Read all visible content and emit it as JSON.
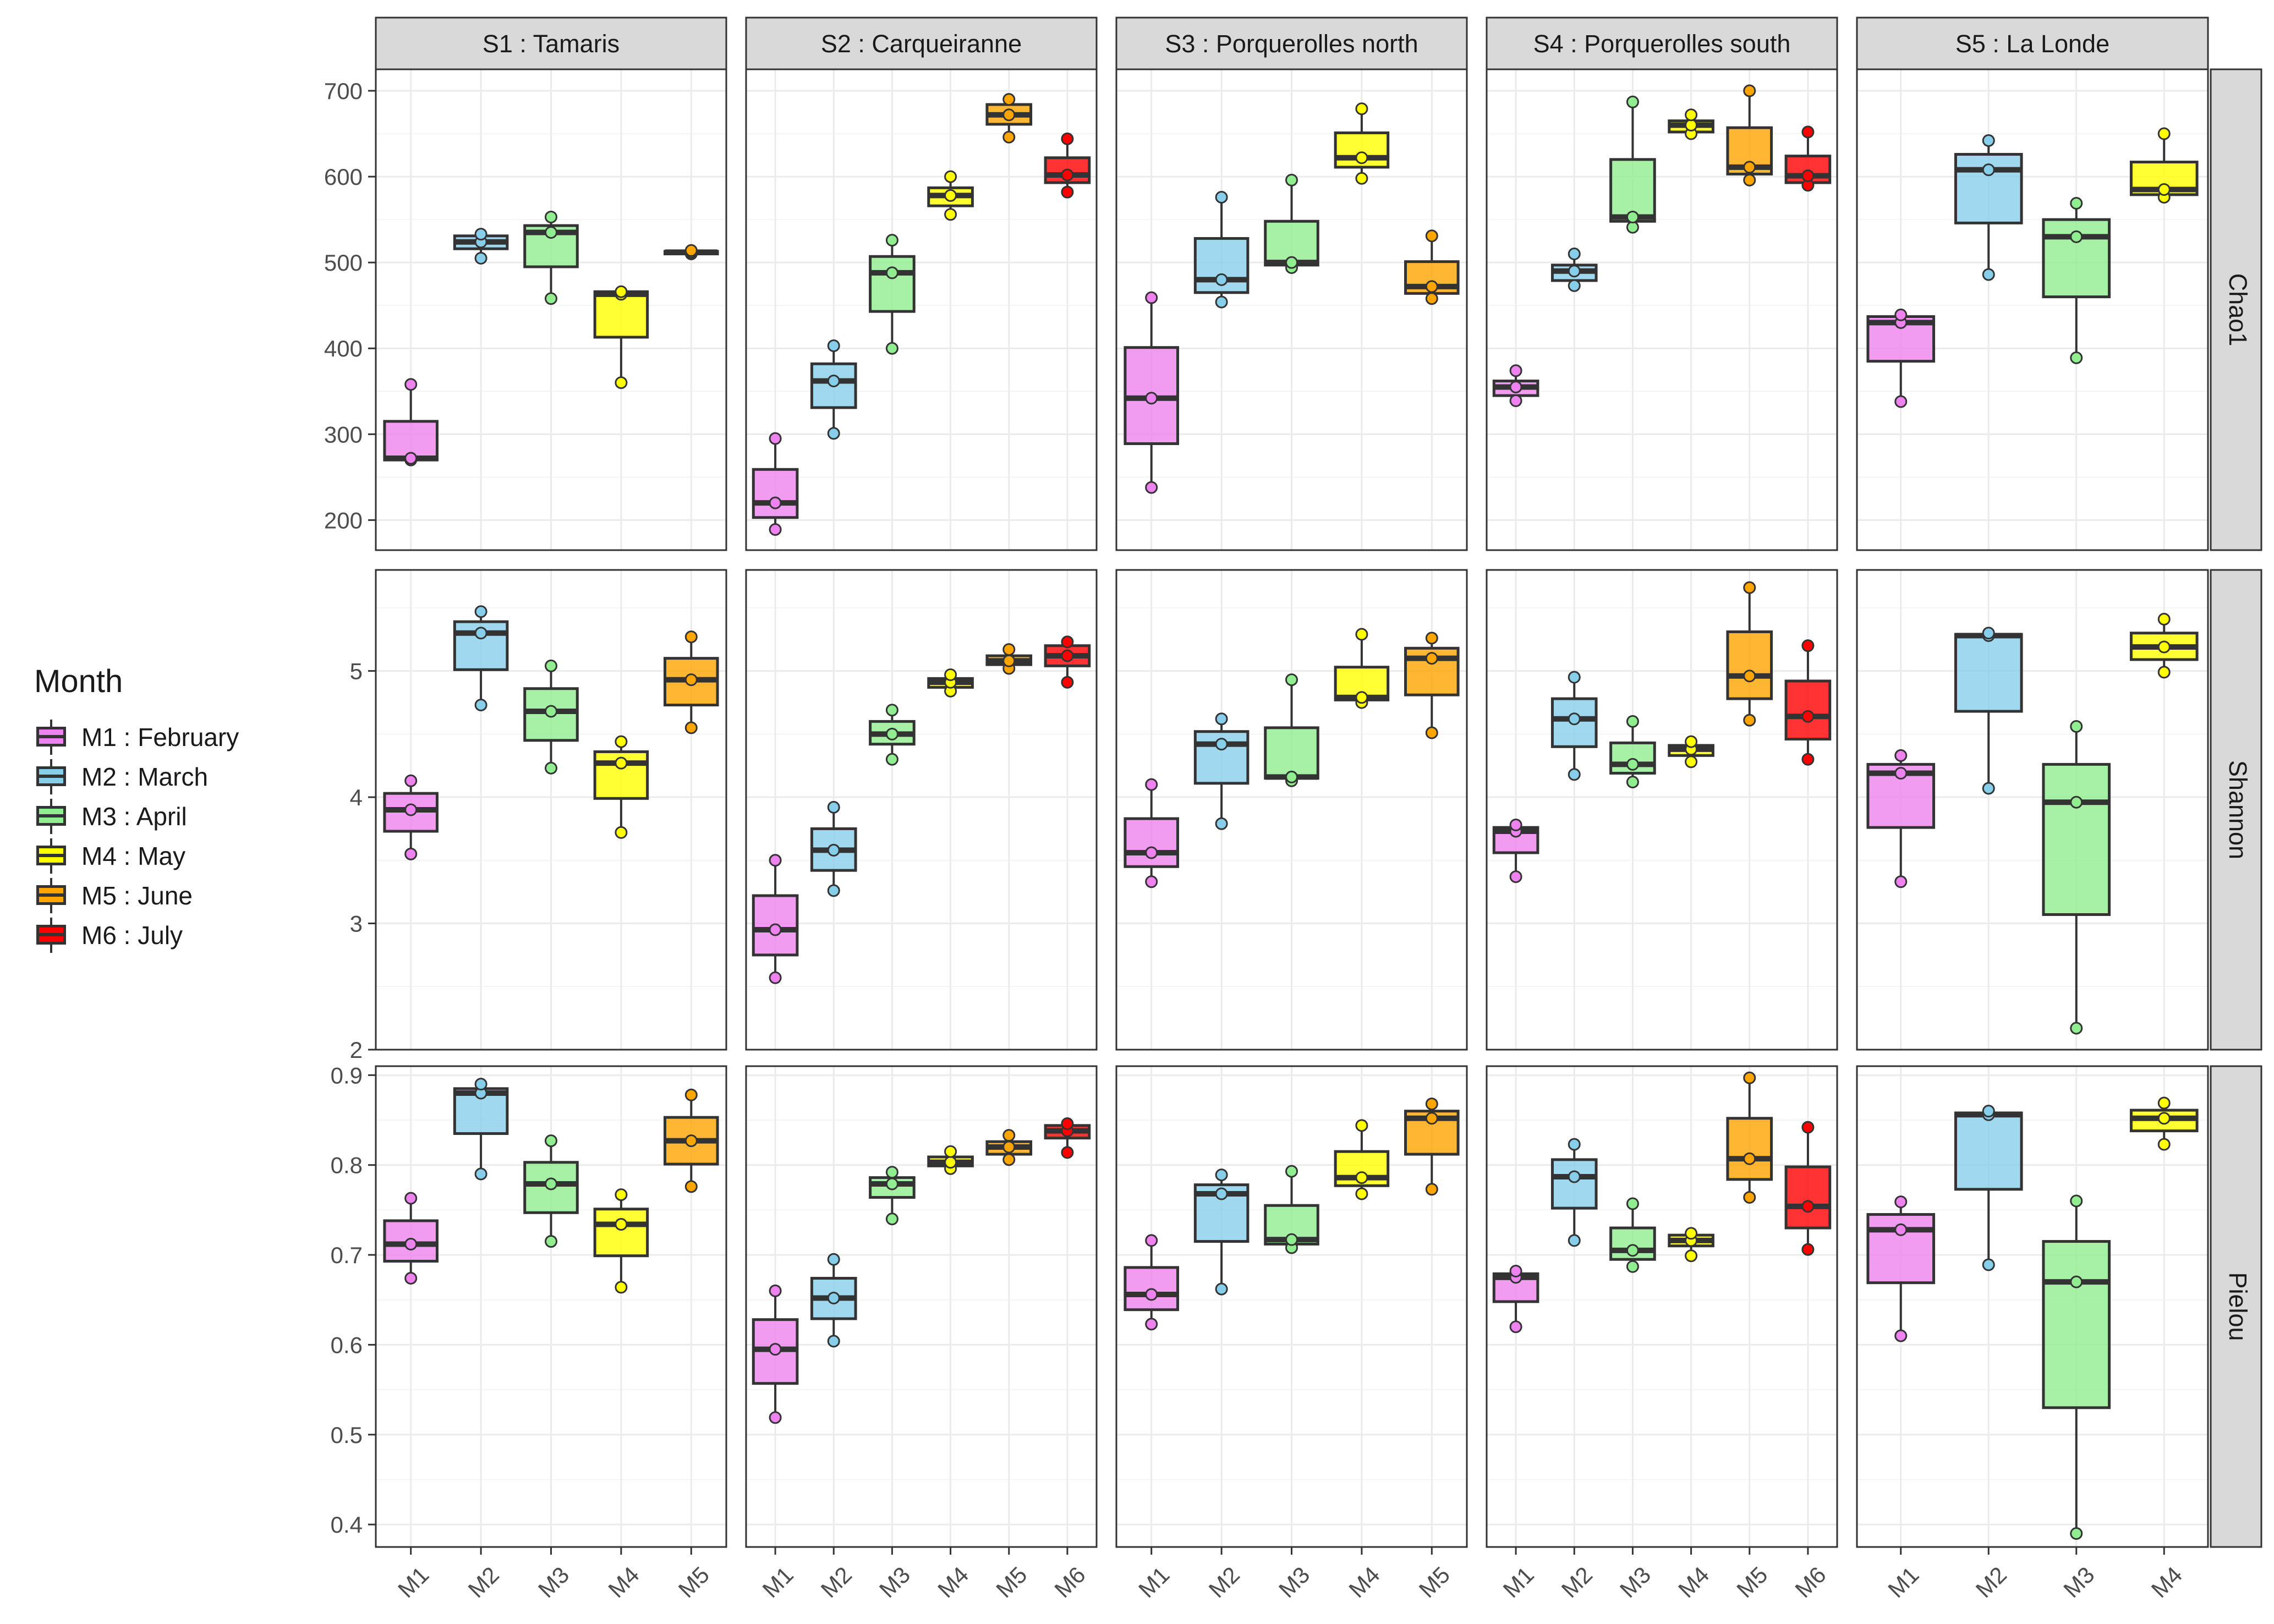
{
  "legend": {
    "title": "Month",
    "items": [
      {
        "key": "M1",
        "label": "M1 : February",
        "color": "#EE82EE"
      },
      {
        "key": "M2",
        "label": "M2 : March",
        "color": "#87CEEB"
      },
      {
        "key": "M3",
        "label": "M3 : April",
        "color": "#90EE90"
      },
      {
        "key": "M4",
        "label": "M4 : May",
        "color": "#FFFF00"
      },
      {
        "key": "M5",
        "label": "M5 : June",
        "color": "#FFA500"
      },
      {
        "key": "M6",
        "label": "M6 : July",
        "color": "#FF0000"
      }
    ]
  },
  "chart_data": {
    "type": "boxplot",
    "facet_columns": [
      "S1 : Tamaris",
      "S2 : Carqueiranne",
      "S3  : Porquerolles north",
      "S4  : Porquerolles south",
      "S5 : La Londe"
    ],
    "facet_rows": [
      {
        "label": "Chao1",
        "ylim": [
          165,
          725
        ],
        "ticks": [
          200,
          300,
          400,
          500,
          600,
          700
        ],
        "tick_labels": [
          "200",
          "300",
          "400",
          "500",
          "600",
          "700"
        ]
      },
      {
        "label": "Shannon",
        "ylim": [
          2,
          5.8
        ],
        "ticks": [
          2,
          3,
          4,
          5
        ],
        "tick_labels": [
          "2",
          "3",
          "4",
          "5"
        ]
      },
      {
        "label": "Pielou",
        "ylim": [
          0.375,
          0.91
        ],
        "ticks": [
          0.4,
          0.5,
          0.6,
          0.7,
          0.8,
          0.9
        ],
        "tick_labels": [
          "0.4",
          "0.5",
          "0.6",
          "0.7",
          "0.8",
          "0.9"
        ]
      }
    ],
    "x_categories": [
      [
        "M1",
        "M2",
        "M3",
        "M4",
        "M5"
      ],
      [
        "M1",
        "M2",
        "M3",
        "M4",
        "M5",
        "M6"
      ],
      [
        "M1",
        "M2",
        "M3",
        "M4",
        "M5"
      ],
      [
        "M1",
        "M2",
        "M3",
        "M4",
        "M5",
        "M6"
      ],
      [
        "M1",
        "M2",
        "M3",
        "M4"
      ]
    ],
    "grid": true,
    "legend_position": "left",
    "panels": [
      [
        [
          [
            270,
            270,
            272,
            315,
            358
          ],
          [
            505,
            516,
            524,
            531,
            533
          ],
          [
            458,
            495,
            535,
            543,
            553
          ],
          [
            360,
            413,
            463,
            466,
            466
          ],
          [
            510,
            510,
            512,
            513,
            514
          ]
        ],
        [
          [
            189,
            203,
            220,
            259,
            295
          ],
          [
            301,
            331,
            362,
            382,
            403
          ],
          [
            400,
            443,
            488,
            507,
            526
          ],
          [
            556,
            566,
            578,
            587,
            600
          ],
          [
            646,
            661,
            672,
            684,
            690
          ],
          [
            582,
            593,
            602,
            622,
            644
          ]
        ],
        [
          [
            238,
            289,
            342,
            401,
            459
          ],
          [
            454,
            465,
            480,
            528,
            576
          ],
          [
            494,
            497,
            500,
            548,
            596
          ],
          [
            598,
            611,
            622,
            651,
            679
          ],
          [
            458,
            464,
            472,
            501,
            531
          ]
        ],
        [
          [
            339,
            345,
            355,
            362,
            374
          ],
          [
            473,
            479,
            490,
            497,
            510
          ],
          [
            541,
            548,
            553,
            620,
            687
          ],
          [
            650,
            652,
            660,
            665,
            672
          ],
          [
            596,
            603,
            611,
            657,
            700
          ],
          [
            590,
            593,
            601,
            624,
            652
          ]
        ],
        [
          [
            338,
            385,
            430,
            437,
            439
          ],
          [
            486,
            546,
            608,
            626,
            642
          ],
          [
            389,
            460,
            530,
            550,
            569
          ],
          [
            576,
            579,
            585,
            617,
            650
          ]
        ]
      ],
      [
        [
          [
            3.55,
            3.73,
            3.9,
            4.03,
            4.13
          ],
          [
            4.73,
            5.01,
            5.3,
            5.39,
            5.47
          ],
          [
            4.23,
            4.45,
            4.68,
            4.86,
            5.04
          ],
          [
            3.72,
            3.99,
            4.27,
            4.36,
            4.44
          ],
          [
            4.55,
            4.73,
            4.93,
            5.1,
            5.27
          ]
        ],
        [
          [
            2.57,
            2.75,
            2.95,
            3.22,
            3.5
          ],
          [
            3.26,
            3.42,
            3.58,
            3.75,
            3.92
          ],
          [
            4.3,
            4.42,
            4.5,
            4.6,
            4.69
          ],
          [
            4.84,
            4.87,
            4.91,
            4.94,
            4.97
          ],
          [
            5.02,
            5.05,
            5.08,
            5.12,
            5.17
          ],
          [
            4.91,
            5.04,
            5.12,
            5.2,
            5.23
          ]
        ],
        [
          [
            3.33,
            3.45,
            3.56,
            3.83,
            4.1
          ],
          [
            3.79,
            4.11,
            4.42,
            4.52,
            4.62
          ],
          [
            4.13,
            4.15,
            4.16,
            4.55,
            4.93
          ],
          [
            4.75,
            4.77,
            4.79,
            5.03,
            5.29
          ],
          [
            4.51,
            4.81,
            5.1,
            5.18,
            5.26
          ]
        ],
        [
          [
            3.37,
            3.56,
            3.73,
            3.76,
            3.78
          ],
          [
            4.18,
            4.4,
            4.62,
            4.78,
            4.95
          ],
          [
            4.12,
            4.19,
            4.26,
            4.43,
            4.6
          ],
          [
            4.28,
            4.33,
            4.38,
            4.41,
            4.44
          ],
          [
            4.61,
            4.78,
            4.96,
            5.31,
            5.66
          ],
          [
            4.3,
            4.46,
            4.64,
            4.92,
            5.2
          ]
        ],
        [
          [
            3.33,
            3.76,
            4.19,
            4.26,
            4.33
          ],
          [
            4.07,
            4.68,
            5.28,
            5.29,
            5.3
          ],
          [
            2.17,
            3.07,
            3.96,
            4.26,
            4.56
          ],
          [
            4.99,
            5.09,
            5.19,
            5.3,
            5.41
          ]
        ]
      ],
      [
        [
          [
            0.674,
            0.693,
            0.712,
            0.738,
            0.763
          ],
          [
            0.79,
            0.835,
            0.88,
            0.885,
            0.89
          ],
          [
            0.715,
            0.747,
            0.779,
            0.803,
            0.827
          ],
          [
            0.664,
            0.699,
            0.734,
            0.751,
            0.767
          ],
          [
            0.776,
            0.801,
            0.827,
            0.853,
            0.878
          ]
        ],
        [
          [
            0.519,
            0.557,
            0.595,
            0.628,
            0.66
          ],
          [
            0.604,
            0.629,
            0.652,
            0.674,
            0.695
          ],
          [
            0.74,
            0.764,
            0.779,
            0.786,
            0.792
          ],
          [
            0.796,
            0.799,
            0.803,
            0.809,
            0.815
          ],
          [
            0.806,
            0.812,
            0.82,
            0.826,
            0.833
          ],
          [
            0.814,
            0.83,
            0.838,
            0.844,
            0.846
          ]
        ],
        [
          [
            0.623,
            0.639,
            0.656,
            0.686,
            0.716
          ],
          [
            0.662,
            0.715,
            0.768,
            0.778,
            0.789
          ],
          [
            0.708,
            0.712,
            0.717,
            0.755,
            0.793
          ],
          [
            0.768,
            0.777,
            0.786,
            0.815,
            0.844
          ],
          [
            0.773,
            0.812,
            0.852,
            0.86,
            0.868
          ]
        ],
        [
          [
            0.62,
            0.648,
            0.675,
            0.679,
            0.682
          ],
          [
            0.716,
            0.752,
            0.787,
            0.806,
            0.823
          ],
          [
            0.687,
            0.695,
            0.705,
            0.73,
            0.757
          ],
          [
            0.699,
            0.71,
            0.716,
            0.722,
            0.724
          ],
          [
            0.764,
            0.784,
            0.807,
            0.852,
            0.897
          ],
          [
            0.706,
            0.73,
            0.754,
            0.798,
            0.842
          ]
        ],
        [
          [
            0.61,
            0.669,
            0.728,
            0.745,
            0.759
          ],
          [
            0.689,
            0.773,
            0.856,
            0.858,
            0.86
          ],
          [
            0.39,
            0.53,
            0.67,
            0.715,
            0.76
          ],
          [
            0.823,
            0.838,
            0.852,
            0.861,
            0.869
          ]
        ]
      ]
    ]
  }
}
